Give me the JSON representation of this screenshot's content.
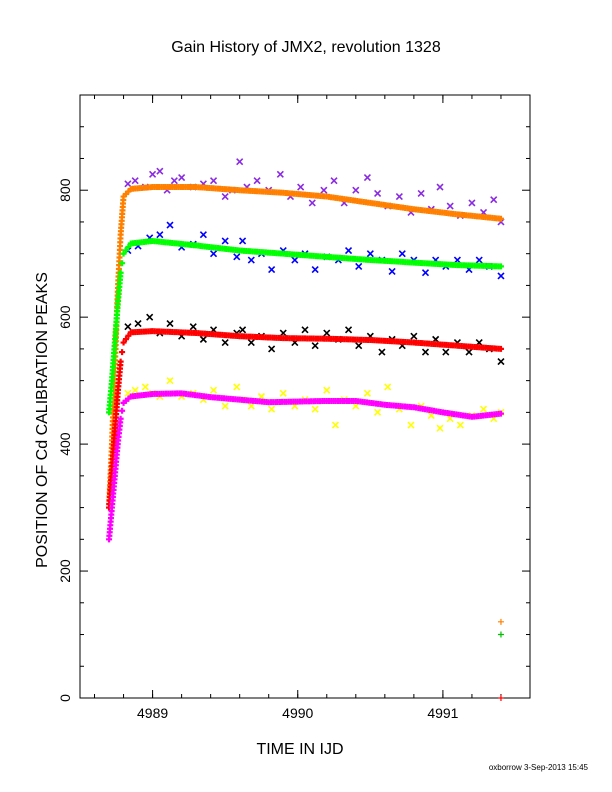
{
  "chart_data": {
    "type": "scatter",
    "title": "Gain History of JMX2, revolution 1328",
    "xlabel": "TIME IN IJD",
    "ylabel": "POSITION OF Cd CALIBRATION PEAKS",
    "xlim": [
      4988.5,
      4991.6
    ],
    "ylim": [
      0,
      950
    ],
    "x_ticks": [
      4989,
      4990,
      4991
    ],
    "y_ticks": [
      0,
      200,
      400,
      600,
      800
    ],
    "grid": false,
    "footer": "oxborrow  3-Sep-2013 15:45",
    "series": [
      {
        "role": "upper-raw",
        "color": "#8a2be2",
        "marker": "x",
        "points": [
          [
            4988.83,
            810
          ],
          [
            4988.88,
            815
          ],
          [
            4988.95,
            805
          ],
          [
            4989.0,
            825
          ],
          [
            4989.05,
            830
          ],
          [
            4989.1,
            800
          ],
          [
            4989.15,
            815
          ],
          [
            4989.2,
            820
          ],
          [
            4989.28,
            805
          ],
          [
            4989.35,
            810
          ],
          [
            4989.42,
            815
          ],
          [
            4989.5,
            790
          ],
          [
            4989.55,
            800
          ],
          [
            4989.6,
            845
          ],
          [
            4989.65,
            805
          ],
          [
            4989.72,
            815
          ],
          [
            4989.8,
            800
          ],
          [
            4989.88,
            825
          ],
          [
            4989.95,
            790
          ],
          [
            4990.02,
            805
          ],
          [
            4990.1,
            780
          ],
          [
            4990.18,
            800
          ],
          [
            4990.25,
            815
          ],
          [
            4990.32,
            780
          ],
          [
            4990.4,
            800
          ],
          [
            4990.48,
            820
          ],
          [
            4990.55,
            795
          ],
          [
            4990.62,
            775
          ],
          [
            4990.7,
            790
          ],
          [
            4990.78,
            765
          ],
          [
            4990.85,
            795
          ],
          [
            4990.92,
            770
          ],
          [
            4990.98,
            805
          ],
          [
            4991.05,
            775
          ],
          [
            4991.12,
            760
          ],
          [
            4991.2,
            780
          ],
          [
            4991.28,
            765
          ],
          [
            4991.35,
            785
          ],
          [
            4991.4,
            750
          ]
        ]
      },
      {
        "role": "upper-fit",
        "color": "#ff8000",
        "marker": "+",
        "points": [
          [
            4988.7,
            300
          ],
          [
            4988.72,
            400
          ],
          [
            4988.74,
            520
          ],
          [
            4988.76,
            640
          ],
          [
            4988.78,
            730
          ],
          [
            4988.8,
            790
          ],
          [
            4988.85,
            802
          ],
          [
            4989.0,
            805
          ],
          [
            4989.3,
            805
          ],
          [
            4989.6,
            800
          ],
          [
            4989.9,
            796
          ],
          [
            4990.2,
            790
          ],
          [
            4990.5,
            780
          ],
          [
            4990.8,
            770
          ],
          [
            4991.1,
            762
          ],
          [
            4991.4,
            755
          ]
        ]
      },
      {
        "role": "second-raw",
        "color": "#0000ff",
        "marker": "x",
        "points": [
          [
            4988.83,
            705
          ],
          [
            4988.9,
            712
          ],
          [
            4988.98,
            725
          ],
          [
            4989.05,
            730
          ],
          [
            4989.12,
            745
          ],
          [
            4989.2,
            710
          ],
          [
            4989.28,
            715
          ],
          [
            4989.35,
            730
          ],
          [
            4989.42,
            700
          ],
          [
            4989.5,
            720
          ],
          [
            4989.58,
            695
          ],
          [
            4989.62,
            720
          ],
          [
            4989.68,
            690
          ],
          [
            4989.75,
            700
          ],
          [
            4989.82,
            675
          ],
          [
            4989.9,
            705
          ],
          [
            4989.98,
            690
          ],
          [
            4990.05,
            700
          ],
          [
            4990.12,
            675
          ],
          [
            4990.2,
            695
          ],
          [
            4990.28,
            690
          ],
          [
            4990.35,
            705
          ],
          [
            4990.42,
            680
          ],
          [
            4990.5,
            700
          ],
          [
            4990.58,
            690
          ],
          [
            4990.65,
            672
          ],
          [
            4990.72,
            700
          ],
          [
            4990.8,
            690
          ],
          [
            4990.88,
            670
          ],
          [
            4990.95,
            690
          ],
          [
            4991.02,
            680
          ],
          [
            4991.1,
            690
          ],
          [
            4991.18,
            675
          ],
          [
            4991.25,
            690
          ],
          [
            4991.32,
            680
          ],
          [
            4991.4,
            665
          ]
        ]
      },
      {
        "role": "second-fit",
        "color": "#00ff00",
        "marker": "+",
        "points": [
          [
            4988.7,
            450
          ],
          [
            4988.72,
            500
          ],
          [
            4988.74,
            560
          ],
          [
            4988.76,
            620
          ],
          [
            4988.78,
            670
          ],
          [
            4988.8,
            700
          ],
          [
            4988.85,
            716
          ],
          [
            4989.0,
            720
          ],
          [
            4989.3,
            713
          ],
          [
            4989.6,
            705
          ],
          [
            4989.9,
            700
          ],
          [
            4990.2,
            695
          ],
          [
            4990.5,
            690
          ],
          [
            4990.8,
            686
          ],
          [
            4991.1,
            682
          ],
          [
            4991.4,
            680
          ]
        ]
      },
      {
        "role": "third-raw",
        "color": "#000000",
        "marker": "x",
        "points": [
          [
            4988.83,
            585
          ],
          [
            4988.9,
            590
          ],
          [
            4988.98,
            600
          ],
          [
            4989.05,
            575
          ],
          [
            4989.12,
            590
          ],
          [
            4989.2,
            570
          ],
          [
            4989.28,
            585
          ],
          [
            4989.35,
            565
          ],
          [
            4989.42,
            580
          ],
          [
            4989.5,
            560
          ],
          [
            4989.58,
            575
          ],
          [
            4989.62,
            580
          ],
          [
            4989.68,
            560
          ],
          [
            4989.75,
            570
          ],
          [
            4989.82,
            550
          ],
          [
            4989.9,
            575
          ],
          [
            4989.98,
            560
          ],
          [
            4990.05,
            580
          ],
          [
            4990.12,
            555
          ],
          [
            4990.2,
            575
          ],
          [
            4990.28,
            565
          ],
          [
            4990.35,
            580
          ],
          [
            4990.42,
            555
          ],
          [
            4990.5,
            570
          ],
          [
            4990.58,
            545
          ],
          [
            4990.65,
            565
          ],
          [
            4990.72,
            555
          ],
          [
            4990.8,
            570
          ],
          [
            4990.88,
            545
          ],
          [
            4990.95,
            565
          ],
          [
            4991.02,
            545
          ],
          [
            4991.1,
            560
          ],
          [
            4991.18,
            545
          ],
          [
            4991.25,
            560
          ],
          [
            4991.32,
            550
          ],
          [
            4991.4,
            530
          ]
        ]
      },
      {
        "role": "third-fit",
        "color": "#ff0000",
        "marker": "+",
        "points": [
          [
            4988.7,
            300
          ],
          [
            4988.72,
            360
          ],
          [
            4988.74,
            420
          ],
          [
            4988.76,
            480
          ],
          [
            4988.78,
            530
          ],
          [
            4988.8,
            560
          ],
          [
            4988.85,
            576
          ],
          [
            4989.0,
            578
          ],
          [
            4989.3,
            575
          ],
          [
            4989.6,
            570
          ],
          [
            4989.9,
            567
          ],
          [
            4990.2,
            566
          ],
          [
            4990.5,
            564
          ],
          [
            4990.8,
            560
          ],
          [
            4991.1,
            555
          ],
          [
            4991.4,
            550
          ]
        ]
      },
      {
        "role": "lower-raw",
        "color": "#ffff00",
        "marker": "x",
        "points": [
          [
            4988.83,
            480
          ],
          [
            4988.88,
            485
          ],
          [
            4988.95,
            490
          ],
          [
            4989.0,
            480
          ],
          [
            4989.05,
            475
          ],
          [
            4989.12,
            500
          ],
          [
            4989.2,
            475
          ],
          [
            4989.28,
            480
          ],
          [
            4989.35,
            470
          ],
          [
            4989.42,
            485
          ],
          [
            4989.5,
            460
          ],
          [
            4989.58,
            490
          ],
          [
            4989.62,
            470
          ],
          [
            4989.68,
            460
          ],
          [
            4989.75,
            475
          ],
          [
            4989.82,
            455
          ],
          [
            4989.9,
            480
          ],
          [
            4989.98,
            460
          ],
          [
            4990.05,
            470
          ],
          [
            4990.12,
            455
          ],
          [
            4990.2,
            485
          ],
          [
            4990.26,
            430
          ],
          [
            4990.32,
            470
          ],
          [
            4990.4,
            460
          ],
          [
            4990.48,
            480
          ],
          [
            4990.55,
            450
          ],
          [
            4990.62,
            490
          ],
          [
            4990.7,
            455
          ],
          [
            4990.78,
            430
          ],
          [
            4990.85,
            460
          ],
          [
            4990.92,
            445
          ],
          [
            4990.98,
            425
          ],
          [
            4991.05,
            440
          ],
          [
            4991.12,
            430
          ],
          [
            4991.2,
            445
          ],
          [
            4991.28,
            455
          ],
          [
            4991.35,
            440
          ],
          [
            4991.4,
            450
          ]
        ]
      },
      {
        "role": "lower-fit",
        "color": "#ff00ff",
        "marker": "+",
        "points": [
          [
            4988.7,
            250
          ],
          [
            4988.72,
            300
          ],
          [
            4988.74,
            350
          ],
          [
            4988.76,
            400
          ],
          [
            4988.78,
            440
          ],
          [
            4988.8,
            465
          ],
          [
            4988.85,
            475
          ],
          [
            4989.0,
            479
          ],
          [
            4989.2,
            480
          ],
          [
            4989.4,
            474
          ],
          [
            4989.6,
            470
          ],
          [
            4989.8,
            466
          ],
          [
            4990.0,
            467
          ],
          [
            4990.2,
            468
          ],
          [
            4990.4,
            468
          ],
          [
            4990.6,
            462
          ],
          [
            4990.8,
            458
          ],
          [
            4991.0,
            450
          ],
          [
            4991.2,
            443
          ],
          [
            4991.4,
            448
          ]
        ]
      },
      {
        "role": "outliers",
        "color": "#ff8000",
        "marker": "+",
        "points": [
          [
            4991.4,
            120
          ]
        ]
      },
      {
        "role": "outliers-2",
        "color": "#00c000",
        "marker": "+",
        "points": [
          [
            4991.4,
            100
          ]
        ]
      },
      {
        "role": "outliers-3",
        "color": "#ff0000",
        "marker": "+",
        "points": [
          [
            4991.4,
            0
          ]
        ]
      }
    ]
  }
}
